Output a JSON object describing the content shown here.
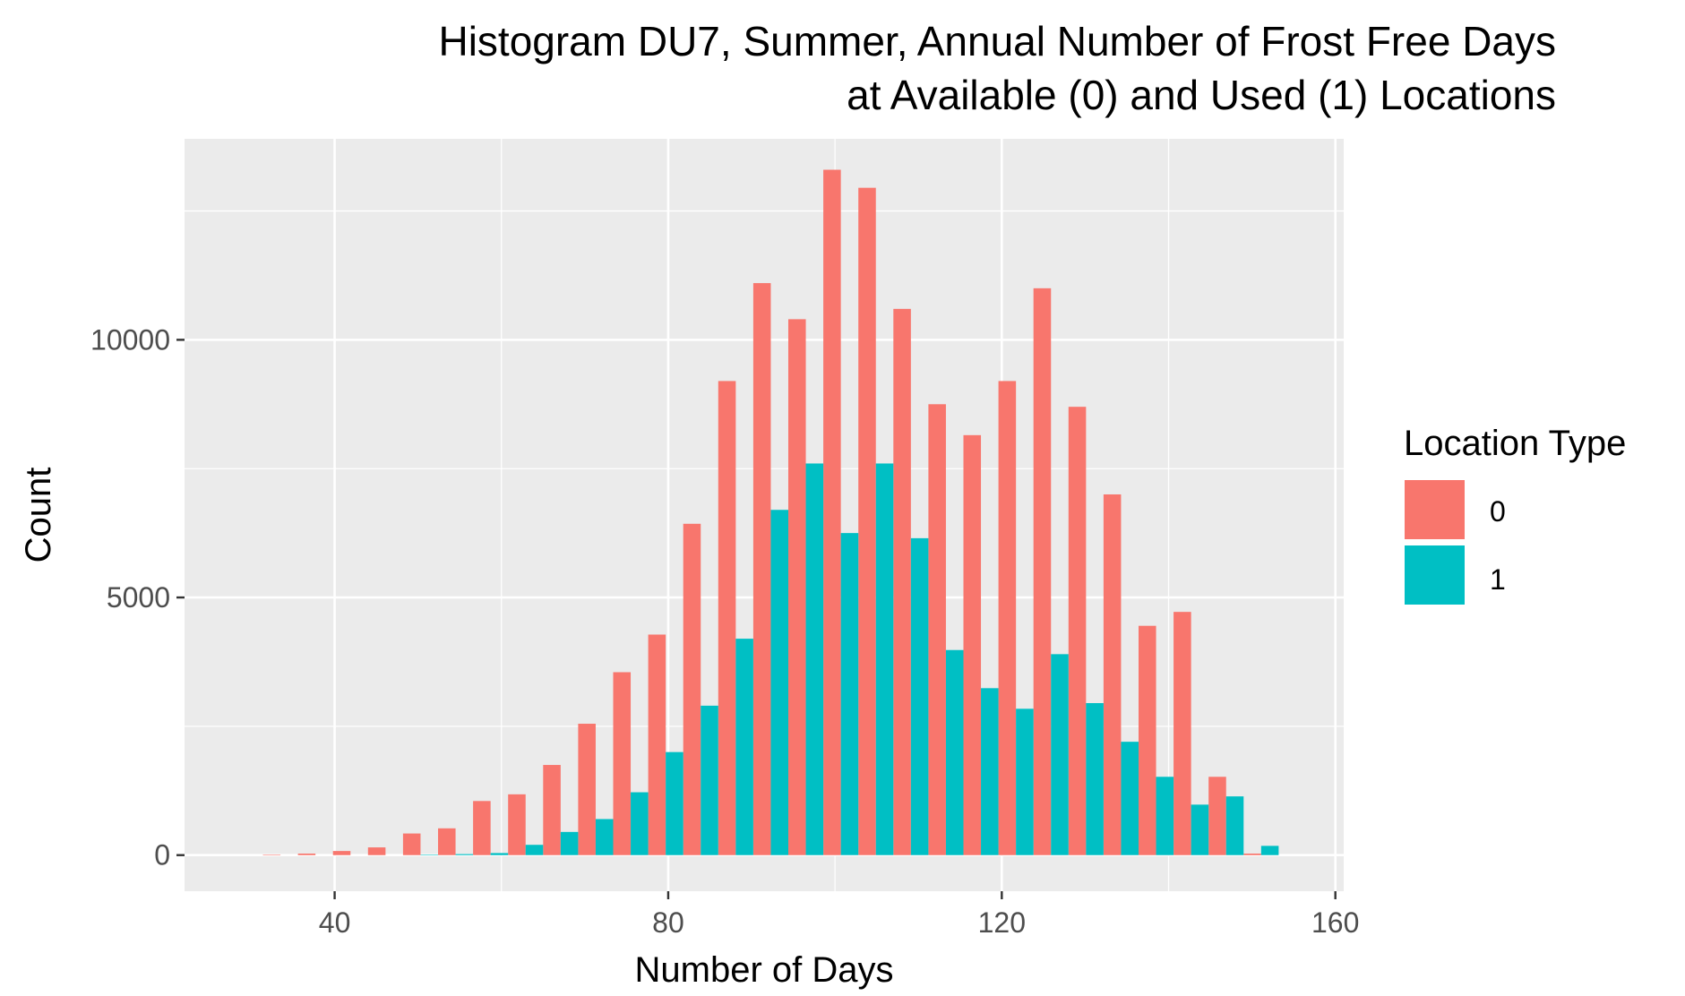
{
  "chart_data": {
    "type": "bar",
    "title_lines": [
      "Histogram DU7, Summer, Annual Number of Frost Free Days",
      "at Available (0) and Used (1) Locations"
    ],
    "xlabel": "Number of Days",
    "ylabel": "Count",
    "xlim": [
      22,
      161
    ],
    "ylim": [
      -700,
      13900
    ],
    "xticks": [
      40,
      80,
      120,
      160
    ],
    "yticks": [
      0,
      5000,
      10000
    ],
    "xtick_labels": [
      "40",
      "80",
      "120",
      "160"
    ],
    "ytick_labels": [
      "0",
      "5000",
      "10000"
    ],
    "grid": true,
    "legend": {
      "title": "Location Type",
      "position": "right",
      "entries": [
        {
          "label": "0",
          "color": "#F8766D"
        },
        {
          "label": "1",
          "color": "#00BFC4"
        }
      ]
    },
    "bin_width": 4.2,
    "bin_centers": [
      33.5,
      37.7,
      41.9,
      46.1,
      50.3,
      54.5,
      58.7,
      62.9,
      67.1,
      71.3,
      75.5,
      79.7,
      83.9,
      88.1,
      92.3,
      96.5,
      100.7,
      104.9,
      109.1,
      113.3,
      117.5,
      121.7,
      125.9,
      130.1,
      134.3,
      138.5,
      142.7,
      146.9,
      151.1
    ],
    "series": [
      {
        "name": "0",
        "color": "#F8766D",
        "values": [
          10,
          30,
          80,
          150,
          420,
          520,
          1050,
          1180,
          1750,
          2550,
          3550,
          4280,
          6430,
          9200,
          11100,
          10400,
          13300,
          12950,
          10600,
          8750,
          8150,
          9200,
          11000,
          8700,
          7000,
          4450,
          4720,
          1520,
          30
        ]
      },
      {
        "name": "1",
        "color": "#00BFC4",
        "values": [
          0,
          0,
          0,
          0,
          10,
          20,
          40,
          200,
          450,
          700,
          1220,
          2000,
          2900,
          4200,
          6700,
          7600,
          6250,
          7600,
          6150,
          3980,
          3240,
          2840,
          3900,
          2950,
          2200,
          1520,
          980,
          1140,
          180
        ]
      }
    ]
  }
}
